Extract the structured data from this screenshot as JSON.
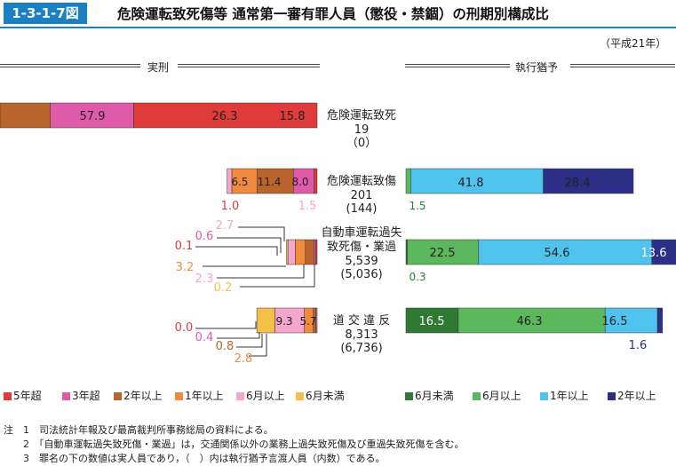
{
  "header": {
    "figure_number": "1-3-1-7図",
    "title": "危険運転致死傷等 通常第一審有罪人員（懲役・禁錮）の刑期別構成比",
    "year_note": "（平成21年）"
  },
  "sections": {
    "left": "実刑",
    "right": "執行猶予"
  },
  "colors": {
    "r5": "#e03b3b",
    "r3": "#e05aaa",
    "r2": "#b8642a",
    "r1": "#f08a3c",
    "m6": "#f4a6cc",
    "u6l": "#f5c04a",
    "u6r": "#2e7a32",
    "m6r": "#5cb85c",
    "y1r": "#4fc3ee",
    "y2r": "#2c2f86"
  },
  "chart_data": {
    "type": "bar",
    "orientation": "horizontal-diverging",
    "categories": [
      {
        "name": "危険運転致死",
        "name2": "",
        "total": "19",
        "paren": "（0）"
      },
      {
        "name": "危険運転致傷",
        "name2": "",
        "total": "201",
        "paren": "(144)"
      },
      {
        "name": "自動車運転過失",
        "name2": "致死傷・業過",
        "total": "5,539",
        "paren": "(5,036)"
      },
      {
        "name": "道 交 違 反",
        "name2": "",
        "total": "8,313",
        "paren": "(6,736)"
      }
    ],
    "jikkei_series": [
      "5年超",
      "3年超",
      "2年以上",
      "1年以上",
      "6月以上",
      "6月未満"
    ],
    "shikko_series": [
      "6月未満",
      "6月以上",
      "1年以上",
      "2年以上"
    ],
    "jikkei_values": [
      [
        57.9,
        26.3,
        15.8,
        0,
        0,
        0
      ],
      [
        1.0,
        6.5,
        11.4,
        8.0,
        1.5,
        0
      ],
      [
        0.1,
        0.6,
        2.7,
        3.2,
        2.3,
        0.2
      ],
      [
        0.0,
        0.4,
        0.8,
        2.8,
        9.3,
        5.7
      ]
    ],
    "shikko_values": [
      [
        0,
        0,
        0,
        0
      ],
      [
        0,
        1.5,
        41.8,
        28.4
      ],
      [
        0.3,
        22.5,
        54.6,
        13.6
      ],
      [
        16.5,
        46.3,
        16.5,
        1.6
      ]
    ]
  },
  "labels": {
    "b1": [
      "57.9",
      "26.3",
      "15.8"
    ],
    "b2_in": [
      "6.5",
      "11.4",
      "8.0"
    ],
    "b2_out": [
      "1.0",
      "1.5",
      "1.5",
      "41.8",
      "28.4"
    ],
    "b3_out": [
      "2.7",
      "0.6",
      "0.1",
      "3.2",
      "2.3",
      "0.2"
    ],
    "b3_in": [
      "22.5",
      "54.6",
      "13.6",
      "0.3"
    ],
    "b4_in": [
      "9.3",
      "5.7",
      "16.5",
      "46.3",
      "16.5"
    ],
    "b4_out": [
      "0.0",
      "0.4",
      "0.8",
      "2.8",
      "1.6"
    ]
  },
  "legend": {
    "left": [
      "5年超",
      "3年超",
      "2年以上",
      "1年以上",
      "6月以上",
      "6月未満"
    ],
    "right": [
      "6月未満",
      "6月以上",
      "1年以上",
      "2年以上"
    ]
  },
  "notes": [
    "注　1　司法統計年報及び最高裁判所事務総局の資料による。",
    "　　2　「自動車運転過失致死傷・業過」は，交通関係以外の業務上過失致死傷及び重過失致死傷を含む。",
    "　　3　罪名の下の数値は実人員であり，（　）内は執行猶予言渡人員（内数）である。"
  ]
}
